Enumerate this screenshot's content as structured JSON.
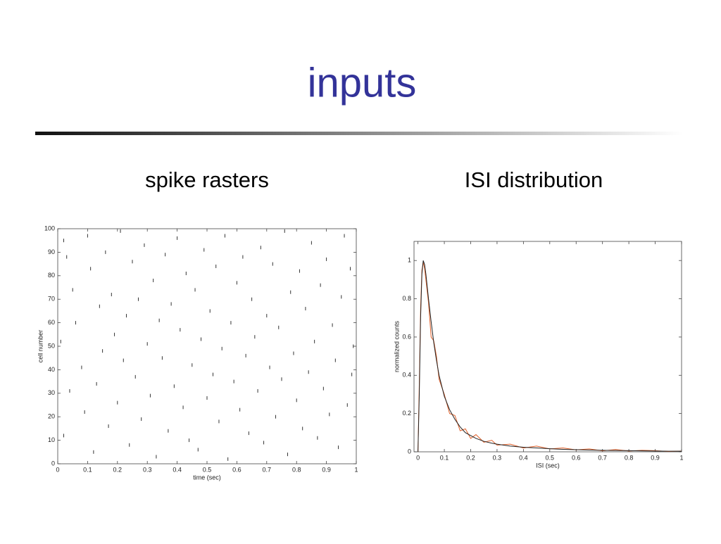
{
  "title": "inputs",
  "chart_data": [
    {
      "type": "scatter",
      "title": "spike rasters",
      "xlabel": "time (sec)",
      "ylabel": "cell number",
      "color": "#333333",
      "x": [
        0.02,
        0.03,
        0.01,
        0.04,
        0.02,
        0.05,
        0.06,
        0.08,
        0.09,
        0.1,
        0.11,
        0.12,
        0.13,
        0.14,
        0.15,
        0.16,
        0.17,
        0.18,
        0.19,
        0.2,
        0.21,
        0.22,
        0.23,
        0.24,
        0.25,
        0.26,
        0.27,
        0.28,
        0.29,
        0.3,
        0.31,
        0.32,
        0.33,
        0.34,
        0.35,
        0.36,
        0.37,
        0.38,
        0.39,
        0.4,
        0.41,
        0.42,
        0.43,
        0.44,
        0.45,
        0.46,
        0.47,
        0.48,
        0.49,
        0.5,
        0.51,
        0.52,
        0.53,
        0.54,
        0.55,
        0.56,
        0.57,
        0.58,
        0.59,
        0.6,
        0.61,
        0.62,
        0.63,
        0.64,
        0.65,
        0.66,
        0.67,
        0.68,
        0.69,
        0.7,
        0.71,
        0.72,
        0.73,
        0.74,
        0.75,
        0.76,
        0.77,
        0.78,
        0.79,
        0.8,
        0.81,
        0.82,
        0.83,
        0.84,
        0.85,
        0.86,
        0.87,
        0.88,
        0.89,
        0.9,
        0.91,
        0.92,
        0.93,
        0.94,
        0.95,
        0.96,
        0.97,
        0.98,
        0.99,
        0.985
      ],
      "y": [
        95,
        88,
        52,
        31,
        12,
        74,
        60,
        41,
        22,
        97,
        83,
        5,
        34,
        67,
        48,
        90,
        16,
        72,
        55,
        26,
        99,
        44,
        63,
        8,
        86,
        37,
        70,
        19,
        93,
        51,
        29,
        78,
        3,
        61,
        45,
        89,
        14,
        68,
        33,
        96,
        57,
        24,
        81,
        10,
        42,
        74,
        6,
        53,
        91,
        28,
        65,
        38,
        84,
        18,
        49,
        97,
        2,
        60,
        35,
        77,
        23,
        88,
        46,
        13,
        70,
        54,
        31,
        92,
        9,
        63,
        41,
        85,
        20,
        58,
        36,
        99,
        4,
        73,
        47,
        27,
        82,
        15,
        66,
        39,
        94,
        52,
        11,
        76,
        32,
        87,
        21,
        59,
        44,
        7,
        71,
        97,
        25,
        83,
        50,
        38
      ],
      "xlim": [
        0,
        1
      ],
      "ylim": [
        0,
        100
      ],
      "xticks": [
        0,
        0.1,
        0.2,
        0.3,
        0.4,
        0.5,
        0.6,
        0.7,
        0.8,
        0.9,
        1
      ],
      "yticks": [
        0,
        10,
        20,
        30,
        40,
        50,
        60,
        70,
        80,
        90,
        100
      ]
    },
    {
      "type": "line",
      "title": "ISI distribution",
      "xlabel": "ISI (sec)",
      "ylabel": "normalized counts",
      "x": [
        0,
        0.005,
        0.01,
        0.015,
        0.02,
        0.025,
        0.03,
        0.04,
        0.05,
        0.06,
        0.07,
        0.08,
        0.1,
        0.12,
        0.14,
        0.16,
        0.18,
        0.2,
        0.22,
        0.25,
        0.28,
        0.3,
        0.35,
        0.4,
        0.45,
        0.5,
        0.55,
        0.6,
        0.65,
        0.7,
        0.75,
        0.8,
        0.85,
        0.9,
        0.95,
        1
      ],
      "series": [
        {
          "color": "#e0602a",
          "values": [
            0,
            0.35,
            0.75,
            0.95,
            0.99,
            0.96,
            0.9,
            0.78,
            0.6,
            0.58,
            0.5,
            0.38,
            0.3,
            0.2,
            0.19,
            0.11,
            0.12,
            0.07,
            0.09,
            0.05,
            0.06,
            0.035,
            0.04,
            0.02,
            0.03,
            0.015,
            0.02,
            0.01,
            0.015,
            0.005,
            0.012,
            0.004,
            0.008,
            0.006,
            0.002,
            0.004
          ]
        },
        {
          "color": "#222222",
          "values": [
            0,
            0.3,
            0.7,
            0.93,
            1,
            0.98,
            0.93,
            0.8,
            0.68,
            0.57,
            0.48,
            0.4,
            0.29,
            0.22,
            0.17,
            0.13,
            0.1,
            0.085,
            0.07,
            0.055,
            0.045,
            0.04,
            0.03,
            0.024,
            0.02,
            0.016,
            0.013,
            0.011,
            0.009,
            0.008,
            0.007,
            0.006,
            0.005,
            0.004,
            0.003,
            0.003
          ]
        }
      ],
      "xlim": [
        -0.015,
        1
      ],
      "ylim": [
        0,
        1.1
      ],
      "xticks": [
        0,
        0.1,
        0.2,
        0.3,
        0.4,
        0.5,
        0.6,
        0.7,
        0.8,
        0.9,
        1
      ],
      "yticks": [
        0,
        0.2,
        0.4,
        0.6,
        0.8,
        1
      ]
    }
  ]
}
